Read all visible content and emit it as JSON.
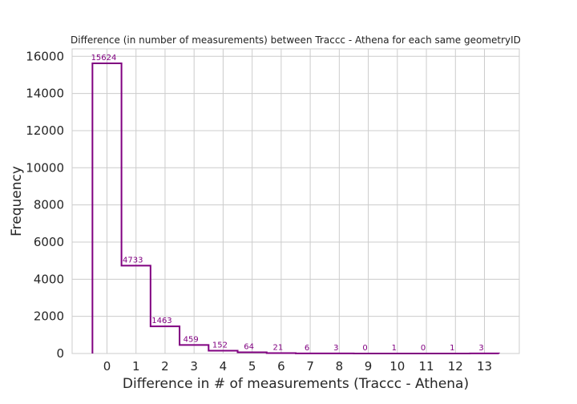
{
  "chart_data": {
    "type": "bar",
    "style": "step-histogram",
    "title": "Difference (in number of measurements) between Traccc - Athena for each same geometryID",
    "xlabel": "Difference in # of measurements (Traccc - Athena)",
    "ylabel": "Frequency",
    "categories": [
      0,
      1,
      2,
      3,
      4,
      5,
      6,
      7,
      8,
      9,
      10,
      11,
      12,
      13
    ],
    "values": [
      15624,
      4733,
      1463,
      459,
      152,
      64,
      21,
      6,
      3,
      0,
      1,
      0,
      1,
      3
    ],
    "value_labels": [
      "15624",
      "4733",
      "1463",
      "459",
      "152",
      "64",
      "21",
      "6",
      "3",
      "0",
      "1",
      "0",
      "1",
      "3"
    ],
    "x_ticks": [
      "0",
      "1",
      "2",
      "3",
      "4",
      "5",
      "6",
      "7",
      "8",
      "9",
      "10",
      "11",
      "12",
      "13"
    ],
    "y_ticks": [
      0,
      2000,
      4000,
      6000,
      8000,
      10000,
      12000,
      14000,
      16000
    ],
    "y_tick_labels": [
      "0",
      "2000",
      "4000",
      "6000",
      "8000",
      "10000",
      "12000",
      "14000",
      "16000"
    ],
    "xlim": [
      -1.2,
      14.2
    ],
    "ylim": [
      0,
      16400
    ],
    "grid": true,
    "legend": "none",
    "color": "#800080"
  }
}
